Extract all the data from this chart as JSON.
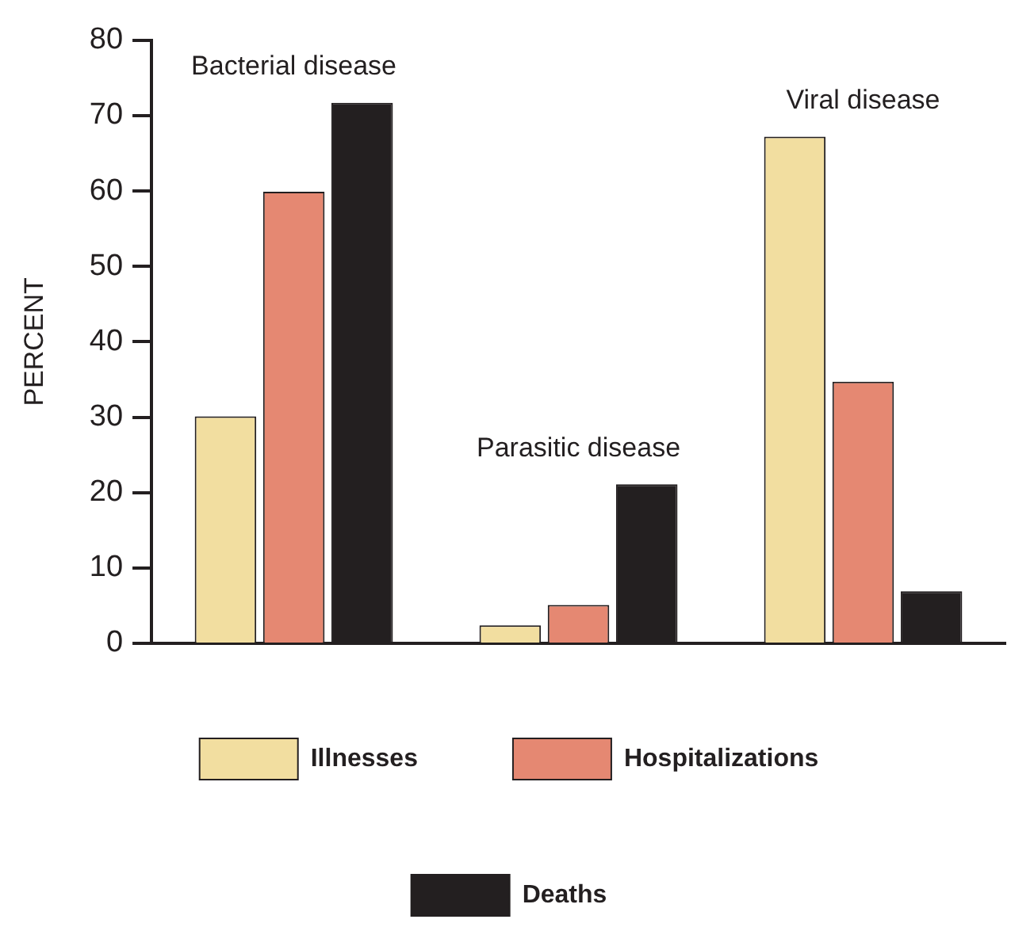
{
  "chart_data": {
    "type": "bar",
    "ylabel": "PERCENT",
    "categories": [
      "Bacterial disease",
      "Parasitic disease",
      "Viral disease"
    ],
    "series": [
      {
        "name": "Illnesses",
        "color": "#f2dea0",
        "values": [
          30.1,
          2.4,
          67.2
        ]
      },
      {
        "name": "Hospitalizations",
        "color": "#e58872",
        "values": [
          59.9,
          5.1,
          34.7
        ]
      },
      {
        "name": "Deaths",
        "color": "#231f20",
        "values": [
          71.7,
          21.1,
          6.9
        ]
      }
    ],
    "ylim": [
      0,
      80
    ],
    "yticks": [
      0,
      10,
      20,
      30,
      40,
      50,
      60,
      70,
      80
    ],
    "grid": false,
    "legend": "bottom",
    "tick_labels": "y"
  }
}
